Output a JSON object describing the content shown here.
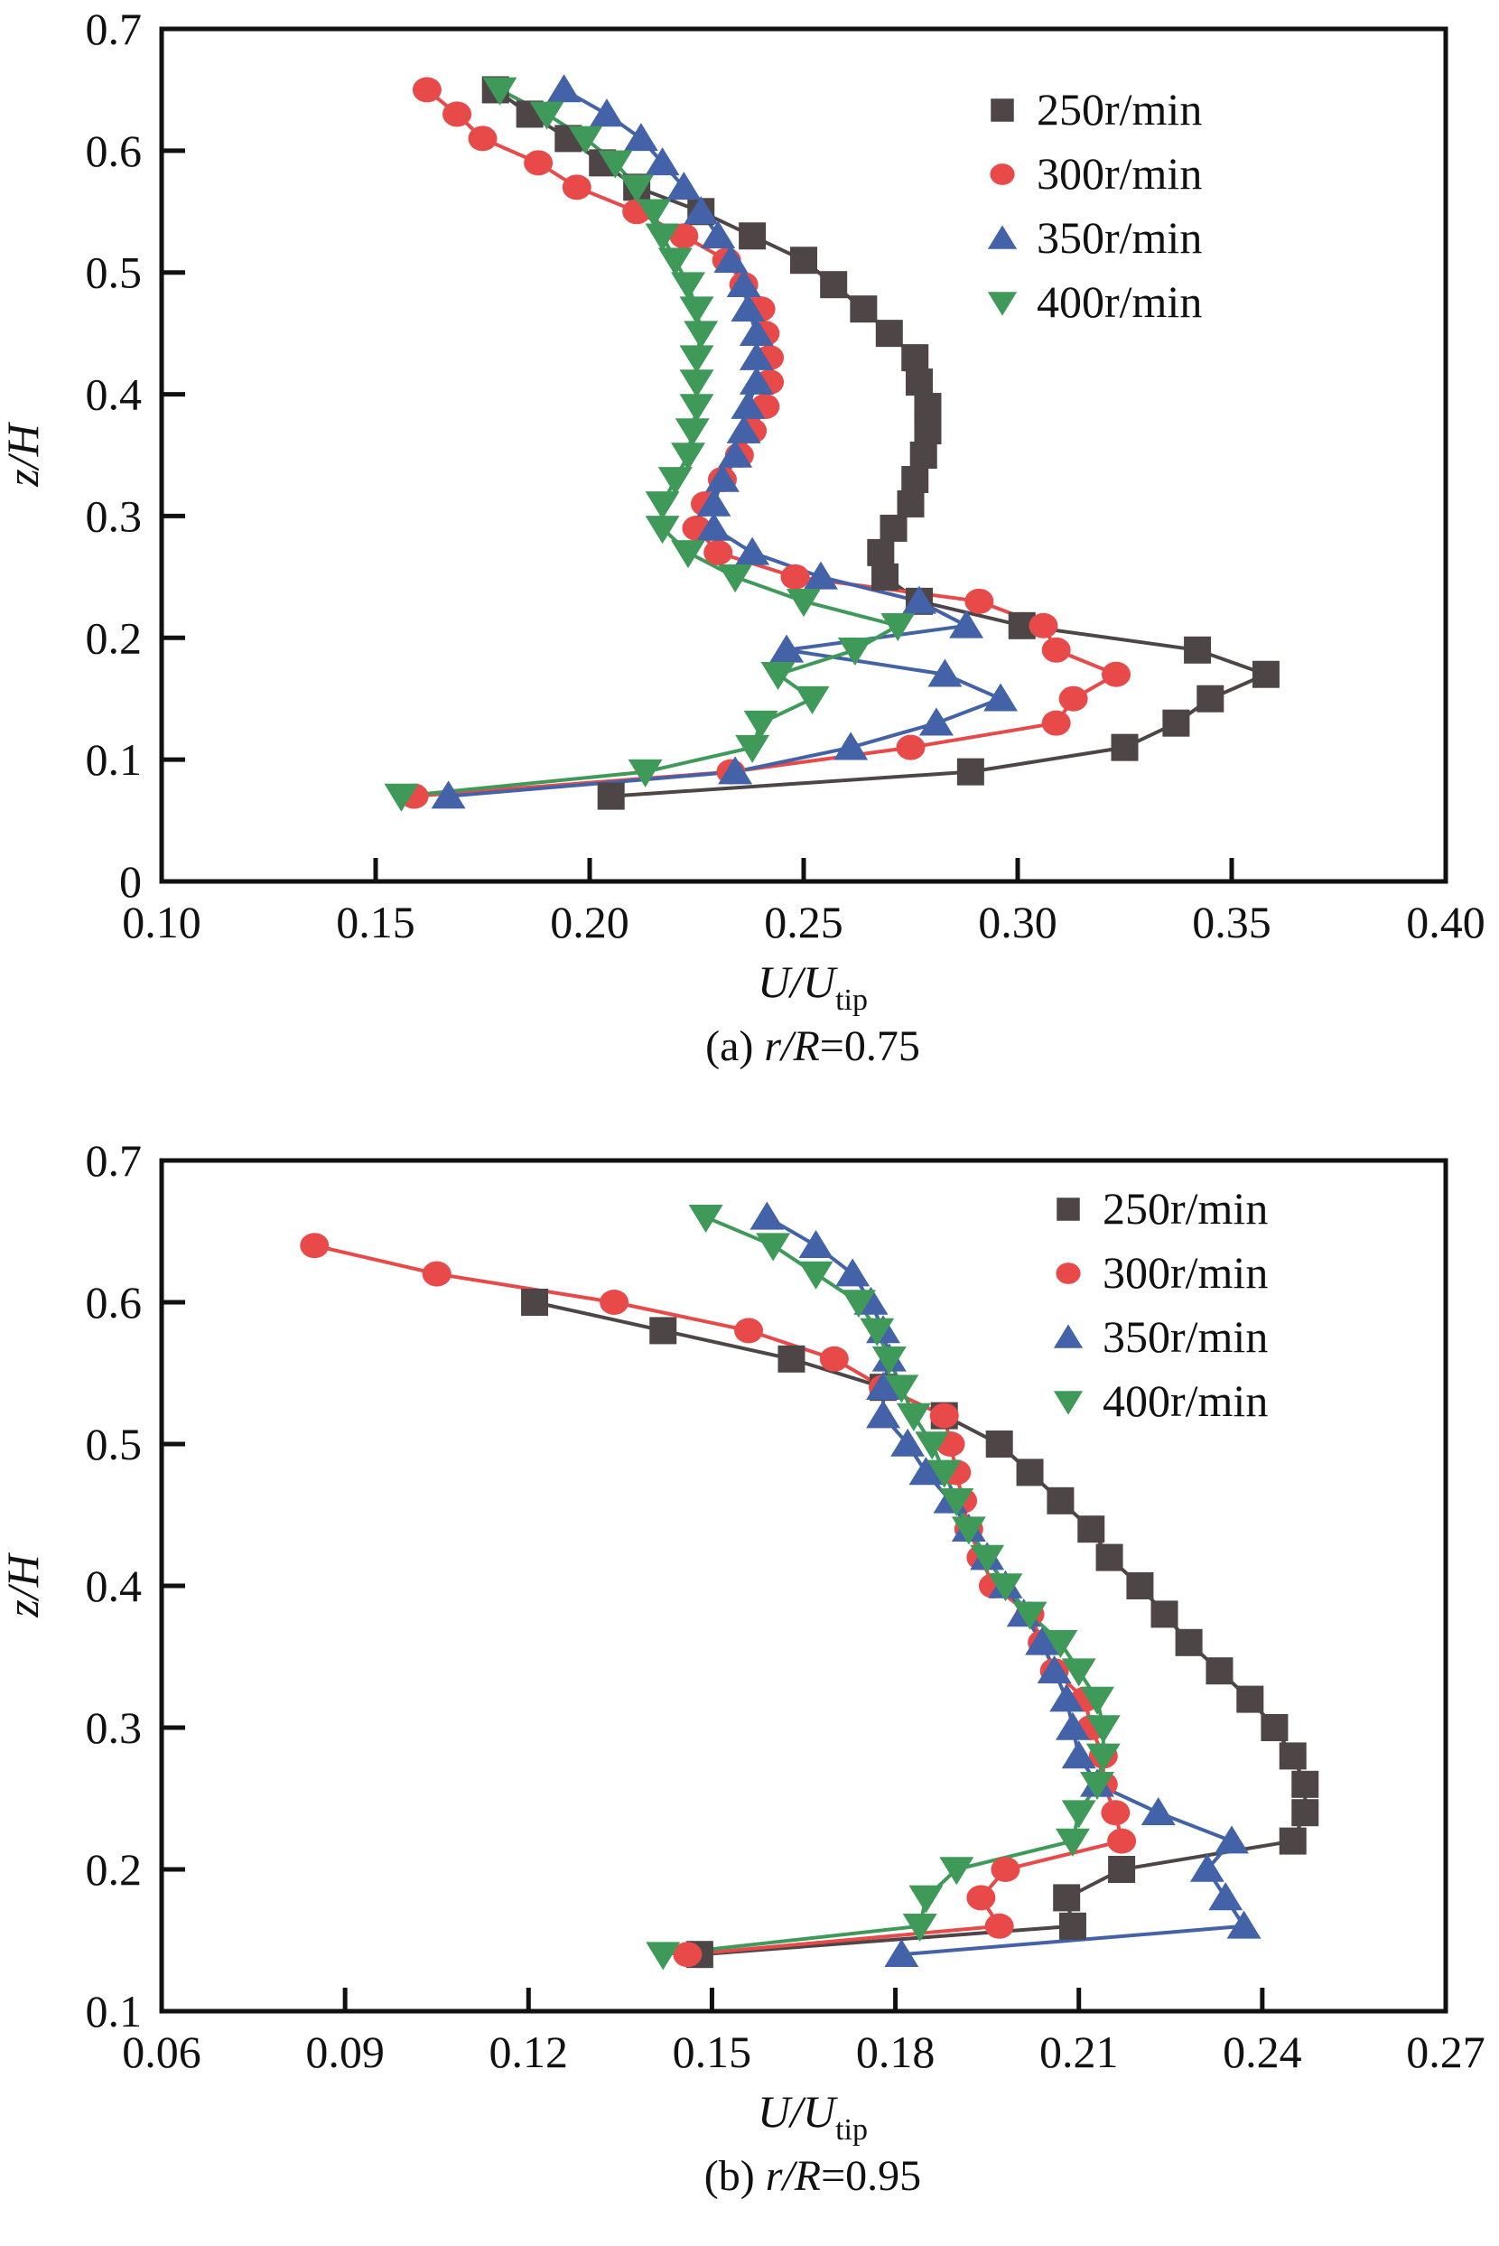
{
  "figure": {
    "series_styles": [
      {
        "name": "250r/min",
        "marker": "square",
        "color": "#4d4546"
      },
      {
        "name": "300r/min",
        "marker": "circle",
        "color": "#e84a4a"
      },
      {
        "name": "350r/min",
        "marker": "triangle-up",
        "color": "#4362a8"
      },
      {
        "name": "400r/min",
        "marker": "triangle-down",
        "color": "#3f9a5a"
      }
    ]
  },
  "chart_data": [
    {
      "type": "line",
      "panel": "a",
      "caption_prefix": "(a) ",
      "caption_var": "r/R",
      "caption_value": "=0.75",
      "xlabel_main": "U/U",
      "xlabel_sub": "tip",
      "ylabel": "z/H",
      "xlim": [
        0.1,
        0.4
      ],
      "ylim": [
        0,
        0.7
      ],
      "xticks": [
        "0.10",
        "0.15",
        "0.20",
        "0.25",
        "0.30",
        "0.35",
        "0.40"
      ],
      "yticks": [
        "0",
        "0.1",
        "0.2",
        "0.3",
        "0.4",
        "0.5",
        "0.6",
        "0.7"
      ],
      "legend": [
        "250r/min",
        "300r/min",
        "350r/min",
        "400r/min"
      ],
      "legend_position": "top-right",
      "grid": false,
      "series": [
        {
          "name": "250r/min",
          "z": [
            0.07,
            0.09,
            0.11,
            0.13,
            0.15,
            0.17,
            0.19,
            0.21,
            0.23,
            0.25,
            0.27,
            0.29,
            0.31,
            0.33,
            0.35,
            0.37,
            0.39,
            0.41,
            0.43,
            0.45,
            0.47,
            0.49,
            0.51,
            0.53,
            0.55,
            0.57,
            0.59,
            0.61,
            0.63,
            0.65
          ],
          "u": [
            0.205,
            0.289,
            0.325,
            0.337,
            0.345,
            0.358,
            0.342,
            0.301,
            0.277,
            0.269,
            0.268,
            0.271,
            0.275,
            0.276,
            0.278,
            0.279,
            0.279,
            0.277,
            0.276,
            0.27,
            0.264,
            0.257,
            0.25,
            0.238,
            0.226,
            0.211,
            0.203,
            0.195,
            0.186,
            0.178
          ]
        },
        {
          "name": "300r/min",
          "z": [
            0.07,
            0.09,
            0.11,
            0.13,
            0.15,
            0.17,
            0.19,
            0.21,
            0.23,
            0.25,
            0.27,
            0.29,
            0.31,
            0.33,
            0.35,
            0.37,
            0.39,
            0.41,
            0.43,
            0.45,
            0.47,
            0.49,
            0.51,
            0.53,
            0.55,
            0.57,
            0.59,
            0.61,
            0.63,
            0.65
          ],
          "u": [
            0.159,
            0.233,
            0.275,
            0.309,
            0.313,
            0.323,
            0.309,
            0.306,
            0.291,
            0.248,
            0.23,
            0.225,
            0.227,
            0.231,
            0.235,
            0.238,
            0.241,
            0.242,
            0.242,
            0.241,
            0.24,
            0.236,
            0.232,
            0.222,
            0.211,
            0.197,
            0.188,
            0.175,
            0.169,
            0.162
          ]
        },
        {
          "name": "350r/min",
          "z": [
            0.07,
            0.09,
            0.11,
            0.13,
            0.15,
            0.17,
            0.19,
            0.21,
            0.23,
            0.25,
            0.27,
            0.29,
            0.31,
            0.33,
            0.35,
            0.37,
            0.39,
            0.41,
            0.43,
            0.45,
            0.47,
            0.49,
            0.51,
            0.53,
            0.55,
            0.57,
            0.59,
            0.61,
            0.63,
            0.65
          ],
          "u": [
            0.167,
            0.234,
            0.261,
            0.281,
            0.296,
            0.283,
            0.246,
            0.288,
            0.277,
            0.254,
            0.238,
            0.229,
            0.229,
            0.231,
            0.234,
            0.236,
            0.237,
            0.239,
            0.239,
            0.239,
            0.237,
            0.236,
            0.233,
            0.23,
            0.226,
            0.222,
            0.217,
            0.212,
            0.204,
            0.194
          ]
        },
        {
          "name": "400r/min",
          "z": [
            0.07,
            0.09,
            0.11,
            0.13,
            0.15,
            0.17,
            0.19,
            0.21,
            0.23,
            0.25,
            0.27,
            0.29,
            0.31,
            0.33,
            0.35,
            0.37,
            0.39,
            0.41,
            0.43,
            0.45,
            0.47,
            0.49,
            0.51,
            0.53,
            0.55,
            0.57,
            0.59,
            0.61,
            0.63,
            0.65
          ],
          "u": [
            0.156,
            0.213,
            0.238,
            0.24,
            0.252,
            0.244,
            0.262,
            0.272,
            0.25,
            0.234,
            0.223,
            0.217,
            0.217,
            0.22,
            0.223,
            0.224,
            0.225,
            0.225,
            0.225,
            0.226,
            0.225,
            0.223,
            0.22,
            0.217,
            0.215,
            0.211,
            0.206,
            0.199,
            0.19,
            0.179
          ]
        }
      ]
    },
    {
      "type": "line",
      "panel": "b",
      "caption_prefix": "(b) ",
      "caption_var": "r/R",
      "caption_value": "=0.95",
      "xlabel_main": "U/U",
      "xlabel_sub": "tip",
      "ylabel": "z/H",
      "xlim": [
        0.06,
        0.27
      ],
      "ylim": [
        0.1,
        0.7
      ],
      "xticks": [
        "0.06",
        "0.09",
        "0.12",
        "0.15",
        "0.18",
        "0.21",
        "0.24",
        "0.27"
      ],
      "yticks": [
        "0.1",
        "0.2",
        "0.3",
        "0.4",
        "0.5",
        "0.6",
        "0.7"
      ],
      "legend": [
        "250r/min",
        "300r/min",
        "350r/min",
        "400r/min"
      ],
      "legend_position": "top-right",
      "grid": false,
      "series": [
        {
          "name": "250r/min",
          "z": [
            0.14,
            0.16,
            0.18,
            0.2,
            0.22,
            0.24,
            0.26,
            0.28,
            0.3,
            0.32,
            0.34,
            0.36,
            0.38,
            0.4,
            0.42,
            0.44,
            0.46,
            0.48,
            0.5,
            0.52,
            0.54,
            0.56,
            0.58,
            0.6
          ],
          "u": [
            0.148,
            0.209,
            0.208,
            0.217,
            0.245,
            0.247,
            0.247,
            0.245,
            0.242,
            0.238,
            0.233,
            0.228,
            0.224,
            0.22,
            0.215,
            0.212,
            0.207,
            0.202,
            0.197,
            0.188,
            0.178,
            0.163,
            0.142,
            0.121
          ]
        },
        {
          "name": "300r/min",
          "z": [
            0.14,
            0.16,
            0.18,
            0.2,
            0.22,
            0.24,
            0.26,
            0.28,
            0.3,
            0.32,
            0.34,
            0.36,
            0.38,
            0.4,
            0.42,
            0.44,
            0.46,
            0.48,
            0.5,
            0.52,
            0.54,
            0.56,
            0.58,
            0.6,
            0.62,
            0.64
          ],
          "u": [
            0.146,
            0.197,
            0.194,
            0.198,
            0.217,
            0.216,
            0.214,
            0.214,
            0.212,
            0.211,
            0.206,
            0.204,
            0.202,
            0.196,
            0.194,
            0.192,
            0.191,
            0.19,
            0.189,
            0.188,
            0.178,
            0.17,
            0.156,
            0.134,
            0.105,
            0.085
          ]
        },
        {
          "name": "350r/min",
          "z": [
            0.14,
            0.16,
            0.18,
            0.2,
            0.22,
            0.24,
            0.26,
            0.28,
            0.3,
            0.32,
            0.34,
            0.36,
            0.38,
            0.4,
            0.42,
            0.44,
            0.46,
            0.48,
            0.5,
            0.52,
            0.54,
            0.56,
            0.58,
            0.6,
            0.62,
            0.64,
            0.66
          ],
          "u": [
            0.181,
            0.237,
            0.234,
            0.231,
            0.235,
            0.223,
            0.213,
            0.21,
            0.209,
            0.208,
            0.206,
            0.204,
            0.201,
            0.198,
            0.195,
            0.192,
            0.189,
            0.185,
            0.182,
            0.178,
            0.178,
            0.179,
            0.178,
            0.176,
            0.173,
            0.167,
            0.159
          ]
        },
        {
          "name": "400r/min",
          "z": [
            0.14,
            0.16,
            0.18,
            0.2,
            0.22,
            0.24,
            0.26,
            0.28,
            0.3,
            0.32,
            0.34,
            0.36,
            0.38,
            0.4,
            0.42,
            0.44,
            0.46,
            0.48,
            0.5,
            0.52,
            0.54,
            0.56,
            0.58,
            0.6,
            0.62,
            0.64,
            0.66
          ],
          "u": [
            0.142,
            0.184,
            0.185,
            0.19,
            0.209,
            0.21,
            0.213,
            0.214,
            0.214,
            0.213,
            0.21,
            0.207,
            0.202,
            0.198,
            0.195,
            0.192,
            0.19,
            0.188,
            0.186,
            0.183,
            0.181,
            0.179,
            0.177,
            0.174,
            0.167,
            0.16,
            0.149
          ]
        }
      ]
    }
  ]
}
